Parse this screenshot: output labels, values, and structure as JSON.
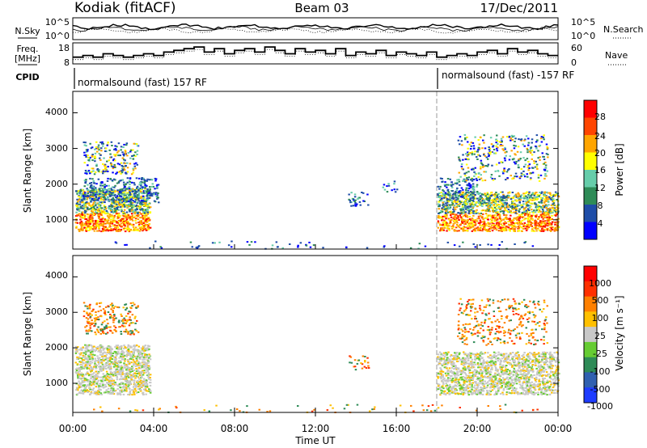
{
  "header": {
    "station": "Kodiak (fitACF)",
    "beam": "Beam 03",
    "date": "17/Dec/2011"
  },
  "chart_data": [
    {
      "type": "line",
      "panel": "noise",
      "left_label": "N.Sky",
      "right_label": "N.Search",
      "left_ticks": [
        "10^5",
        "10^0"
      ],
      "right_ticks": [
        "10^5",
        "10^0"
      ]
    },
    {
      "type": "line",
      "panel": "frequency-nave",
      "left_label_line1": "Freq.",
      "left_label_line2": "[MHz]",
      "right_label": "Nave",
      "left_ticks": [
        "18",
        "8"
      ],
      "right_ticks": [
        "60",
        "0"
      ],
      "freq_steps": [
        [
          0.0,
          11
        ],
        [
          0.5,
          12
        ],
        [
          1.0,
          11
        ],
        [
          1.5,
          13
        ],
        [
          2.0,
          12
        ],
        [
          2.5,
          11
        ],
        [
          3.0,
          12
        ],
        [
          3.5,
          13
        ],
        [
          4.0,
          12
        ],
        [
          4.5,
          14
        ],
        [
          5.0,
          15
        ],
        [
          5.5,
          16
        ],
        [
          6.0,
          17
        ],
        [
          6.5,
          14
        ],
        [
          7.0,
          16
        ],
        [
          7.5,
          13
        ],
        [
          8.0,
          15
        ],
        [
          8.5,
          16
        ],
        [
          9.0,
          14
        ],
        [
          9.5,
          17
        ],
        [
          10.0,
          15
        ],
        [
          10.5,
          13
        ],
        [
          11.0,
          16
        ],
        [
          11.5,
          14
        ],
        [
          12.0,
          15
        ],
        [
          12.5,
          13
        ],
        [
          13.0,
          16
        ],
        [
          13.5,
          12
        ],
        [
          14.0,
          14
        ],
        [
          14.5,
          13
        ],
        [
          15.0,
          15
        ],
        [
          15.5,
          12
        ],
        [
          16.0,
          14
        ],
        [
          16.5,
          13
        ],
        [
          17.0,
          12
        ],
        [
          17.5,
          14
        ],
        [
          18.0,
          11
        ],
        [
          18.5,
          12
        ],
        [
          19.0,
          13
        ],
        [
          19.5,
          12
        ],
        [
          20.0,
          14
        ],
        [
          20.5,
          15
        ],
        [
          21.0,
          13
        ],
        [
          21.5,
          16
        ],
        [
          22.0,
          14
        ],
        [
          22.5,
          15
        ],
        [
          23.0,
          13
        ],
        [
          23.5,
          12
        ],
        [
          24.0,
          12
        ]
      ]
    },
    {
      "type": "table",
      "panel": "cpid",
      "label": "CPID",
      "segments": [
        {
          "start_h": 0,
          "text": "normalsound (fast) 157 RF"
        },
        {
          "start_h": 18,
          "text": "normalsound (fast) -157 RF"
        }
      ]
    },
    {
      "type": "heatmap",
      "panel": "power",
      "ylabel": "Slant Range [km]",
      "yticks": [
        "4000",
        "3000",
        "2000",
        "1000"
      ],
      "ylim": [
        180,
        4600
      ],
      "xlim": [
        0,
        24
      ],
      "colorbar_label": "Power [dB]",
      "colorbar_ticks": [
        "28",
        "24",
        "20",
        "16",
        "12",
        "8",
        "4"
      ],
      "colors": [
        "#0000ff",
        "#1e4da8",
        "#2e8b57",
        "#66cdaa",
        "#ffff00",
        "#ffa500",
        "#ff4500",
        "#ff0000"
      ]
    },
    {
      "type": "heatmap",
      "panel": "velocity",
      "ylabel": "Slant Range [km]",
      "yticks": [
        "4000",
        "3000",
        "2000",
        "1000"
      ],
      "ylim": [
        180,
        4600
      ],
      "xlim": [
        0,
        24
      ],
      "colorbar_label": "Velocity [m s⁻¹]",
      "colorbar_ticks": [
        "1000",
        "500",
        "100",
        "25",
        "-25",
        "-100",
        "-500",
        "-1000"
      ],
      "colors": [
        "#1e3cff",
        "#3060b0",
        "#2e8b57",
        "#66cc33",
        "#c8c8c8",
        "#ffc000",
        "#ff8000",
        "#ff3000",
        "#ff0000"
      ]
    }
  ],
  "xaxis": {
    "ticks": [
      "00:00",
      "04:00",
      "08:00",
      "12:00",
      "16:00",
      "20:00",
      "00:00"
    ],
    "label": "Time UT"
  }
}
